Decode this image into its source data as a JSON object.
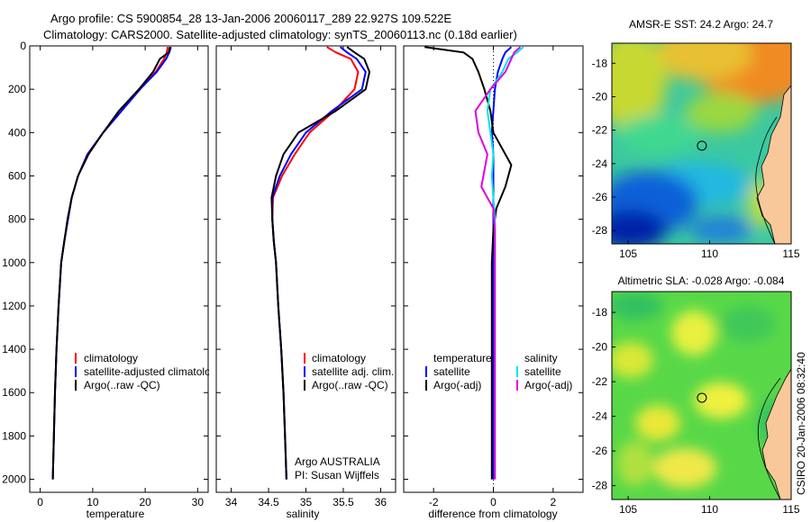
{
  "figure": {
    "title_line1": "Argo profile: CS 5900854_28 13-Jan-2006 20060117_289 22.927S 109.522E",
    "title_line2": "Climatology: CARS2000. Satellite-adjusted climatology: synTS_20060113.nc (0.18d earlier)",
    "credit": "CSIRO 20-Jan-2006 08:32:40",
    "argo_info_line1": "Argo AUSTRALIA",
    "argo_info_line2": "PI: Susan Wijffels"
  },
  "colors": {
    "climatology": "#ff0000",
    "satellite": "#0000ff",
    "argo": "#000000",
    "sal_satellite": "#00e5e5",
    "sal_argo": "#e000e0",
    "land": "#f8c89a"
  },
  "chart_data": [
    {
      "type": "line",
      "name": "temperature-profile",
      "xlabel": "temperature",
      "ylabel": "",
      "xlim": [
        -2,
        32
      ],
      "ylim": [
        2060,
        0
      ],
      "xticks": [
        0,
        10,
        20,
        30
      ],
      "yticks": [
        0,
        200,
        400,
        600,
        800,
        1000,
        1200,
        1400,
        1600,
        1800,
        2000
      ],
      "legend": [
        "climatology",
        "satellite-adjusted climatology",
        "Argo(..raw -QC)"
      ],
      "series": [
        {
          "name": "climatology",
          "x": [
            24.3,
            24.1,
            23.6,
            22.0,
            19.0,
            15.5,
            12.0,
            9.0,
            7.2,
            6.0,
            5.3,
            4.6,
            4.0,
            3.5,
            3.1,
            2.8,
            2.6,
            2.4
          ],
          "y": [
            5,
            30,
            60,
            120,
            200,
            300,
            400,
            500,
            600,
            700,
            800,
            900,
            1000,
            1200,
            1400,
            1600,
            1800,
            2000
          ]
        },
        {
          "name": "satellite",
          "x": [
            24.9,
            24.6,
            24.0,
            22.2,
            19.0,
            15.5,
            12.0,
            9.0,
            7.2,
            6.0,
            5.3,
            4.6,
            4.0,
            3.5,
            3.1,
            2.8,
            2.6,
            2.4
          ],
          "y": [
            5,
            30,
            60,
            120,
            200,
            300,
            400,
            500,
            600,
            700,
            800,
            900,
            1000,
            1200,
            1400,
            1600,
            1800,
            2000
          ]
        },
        {
          "name": "argo",
          "x": [
            24.7,
            24.5,
            22.8,
            21.5,
            18.8,
            15.0,
            12.0,
            9.2,
            7.2,
            6.0,
            5.2,
            4.6,
            4.0,
            3.5,
            3.1,
            2.8,
            2.6,
            2.4
          ],
          "y": [
            5,
            30,
            60,
            120,
            200,
            300,
            400,
            500,
            600,
            700,
            800,
            900,
            1000,
            1200,
            1400,
            1600,
            1800,
            2000
          ]
        }
      ]
    },
    {
      "type": "line",
      "name": "salinity-profile",
      "xlabel": "salinity",
      "ylabel": "",
      "xlim": [
        33.8,
        36.2
      ],
      "ylim": [
        2060,
        0
      ],
      "xticks": [
        34,
        34.5,
        35,
        35.5,
        36
      ],
      "legend": [
        "climatology",
        "satellite adj. clim.",
        "Argo(..raw -QC)"
      ],
      "series": [
        {
          "name": "climatology",
          "x": [
            35.28,
            35.4,
            35.6,
            35.7,
            35.65,
            35.38,
            35.05,
            34.85,
            34.68,
            34.56,
            34.55,
            34.57,
            34.6,
            34.63,
            34.67,
            34.7,
            34.72,
            34.74
          ],
          "y": [
            5,
            30,
            60,
            120,
            200,
            300,
            400,
            500,
            600,
            700,
            800,
            900,
            1000,
            1200,
            1400,
            1600,
            1800,
            2000
          ]
        },
        {
          "name": "satellite",
          "x": [
            35.46,
            35.55,
            35.68,
            35.8,
            35.75,
            35.35,
            35.0,
            34.8,
            34.65,
            34.55,
            34.55,
            34.57,
            34.6,
            34.63,
            34.67,
            34.7,
            34.72,
            34.74
          ],
          "y": [
            5,
            30,
            60,
            120,
            200,
            300,
            400,
            500,
            600,
            700,
            800,
            900,
            1000,
            1200,
            1400,
            1600,
            1800,
            2000
          ]
        },
        {
          "name": "argo",
          "x": [
            35.55,
            35.65,
            35.78,
            35.85,
            35.8,
            35.4,
            34.9,
            34.7,
            34.6,
            34.54,
            34.55,
            34.57,
            34.6,
            34.63,
            34.67,
            34.7,
            34.72,
            34.74
          ],
          "y": [
            5,
            30,
            60,
            120,
            200,
            300,
            400,
            500,
            600,
            700,
            800,
            900,
            1000,
            1200,
            1400,
            1600,
            1800,
            2000
          ]
        }
      ]
    },
    {
      "type": "line",
      "name": "difference-profile",
      "xlabel": "difference from climatology",
      "ylabel": "",
      "xlim": [
        -3,
        3
      ],
      "ylim": [
        2060,
        0
      ],
      "xticks": [
        -2,
        0,
        2
      ],
      "legend_groups": [
        {
          "title": "temperature",
          "entries": [
            "satellite",
            "Argo(-adj)"
          ]
        },
        {
          "title": "salinity",
          "entries": [
            "satellite",
            "Argo(-adj)"
          ]
        }
      ],
      "series": [
        {
          "name": "temp-satellite",
          "x": [
            0.6,
            0.4,
            0.3,
            0.15,
            0.05,
            0.0,
            -0.05,
            0.0,
            0.0,
            0.0,
            0.0,
            0.0,
            0.0,
            0.0,
            0.0
          ],
          "y": [
            5,
            30,
            60,
            120,
            200,
            300,
            400,
            500,
            600,
            700,
            800,
            1000,
            1400,
            1800,
            2000
          ]
        },
        {
          "name": "temp-argo",
          "x": [
            -2.3,
            -1.0,
            -0.7,
            -0.5,
            -0.3,
            -0.1,
            0.0,
            0.6,
            0.4,
            0.1,
            0.0,
            -0.05,
            -0.05,
            -0.05,
            -0.05
          ],
          "y": [
            5,
            30,
            60,
            120,
            200,
            300,
            400,
            550,
            650,
            750,
            850,
            1000,
            1400,
            1800,
            2000
          ]
        },
        {
          "name": "sal-satellite",
          "x": [
            1.0,
            0.8,
            0.5,
            0.3,
            -0.1,
            -0.2,
            -0.1,
            0.0,
            -0.05,
            0.0,
            0.05,
            0.05,
            0.05,
            0.05,
            0.05
          ],
          "y": [
            5,
            30,
            60,
            120,
            200,
            300,
            400,
            500,
            600,
            700,
            800,
            1000,
            1400,
            1800,
            2000
          ]
        },
        {
          "name": "sal-argo",
          "x": [
            0.9,
            0.7,
            0.6,
            0.4,
            -0.1,
            -0.6,
            -0.5,
            -0.2,
            -0.4,
            0.0,
            0.05,
            0.05,
            0.05,
            0.05,
            0.05
          ],
          "y": [
            5,
            30,
            60,
            120,
            200,
            300,
            400,
            500,
            650,
            750,
            850,
            1000,
            1400,
            1800,
            2000
          ]
        }
      ]
    },
    {
      "type": "heatmap",
      "name": "sst-map",
      "title": "AMSR-E SST: 24.2 Argo: 24.7",
      "xlim": [
        104,
        115
      ],
      "ylim": [
        -28.8,
        -16.8
      ],
      "xticks": [
        105,
        110,
        115
      ],
      "yticks": [
        -18,
        -20,
        -22,
        -24,
        -26,
        -28
      ],
      "argo_lon": 109.522,
      "argo_lat": -22.927
    },
    {
      "type": "heatmap",
      "name": "sla-map",
      "title": "Altimetric SLA: -0.028 Argo: -0.084",
      "xlim": [
        104,
        115
      ],
      "ylim": [
        -28.8,
        -16.8
      ],
      "xticks": [
        105,
        110,
        115
      ],
      "yticks": [
        -18,
        -20,
        -22,
        -24,
        -26,
        -28
      ],
      "argo_lon": 109.522,
      "argo_lat": -22.927
    }
  ]
}
